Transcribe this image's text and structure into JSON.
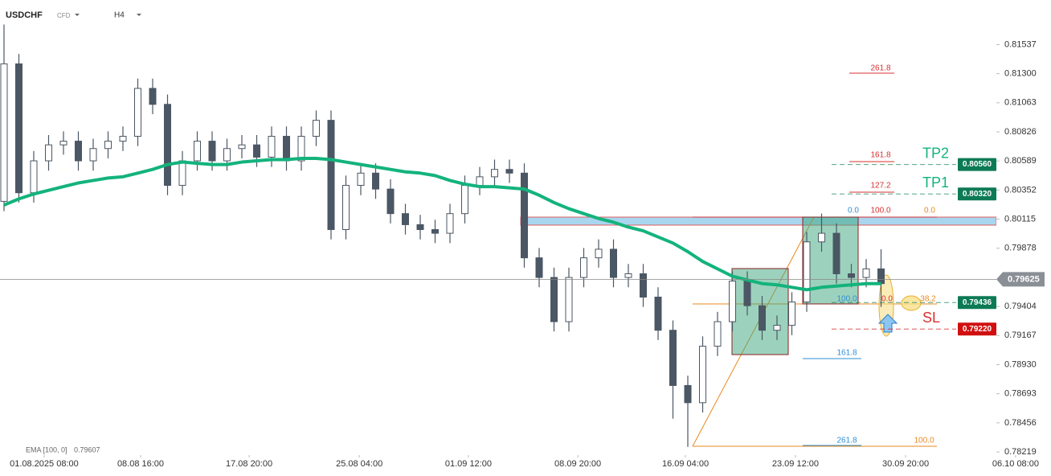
{
  "chart_data": {
    "type": "candlestick",
    "title": "USDCHF",
    "subtitle": "CFD",
    "timeframe": "H4",
    "indicator": {
      "name": "EMA [100, 0]",
      "value": 0.79607
    },
    "xlim": [
      -0.27,
      70
    ],
    "xticks": [
      {
        "value": 2.7,
        "label": "01.08.2025 08:00"
      },
      {
        "value": 9.19,
        "label": "08.08 16:00"
      },
      {
        "value": 16.49,
        "label": "17.08 20:00"
      },
      {
        "value": 23.9,
        "label": "25.08 04:00"
      },
      {
        "value": 31.24,
        "label": "01.09 12:00"
      },
      {
        "value": 38.6,
        "label": "08.09 20:00"
      },
      {
        "value": 45.84,
        "label": "16.09 04:00"
      },
      {
        "value": 53.24,
        "label": "23.09 12:00"
      },
      {
        "value": 60.65,
        "label": "30.09 20:00"
      },
      {
        "value": 68.05,
        "label": "06.10 08:00"
      }
    ],
    "ylim": [
      0.7818,
      0.819
    ],
    "yticks": [
      0.81537,
      {
        "value": 0.813,
        "label": "0.81300"
      },
      0.81063,
      0.80826,
      0.80589,
      0.80352,
      0.80115,
      0.79878,
      0.79404,
      0.79167,
      {
        "value": 0.7893,
        "label": "0.78930"
      },
      0.78693,
      0.78456,
      0.78219
    ],
    "open": [
      0.8026,
      0.8138,
      0.8033,
      0.8059,
      0.8072,
      0.8075,
      0.8059,
      0.8069,
      0.8075,
      0.8079,
      0.8118,
      0.8105,
      0.8039,
      0.8059,
      0.8075,
      0.8059,
      0.8069,
      0.8072,
      0.8062,
      0.8079,
      0.8059,
      0.8079,
      0.8092,
      0.8003,
      0.8039,
      0.8049,
      0.8036,
      0.8016,
      0.8007,
      0.8003,
      0.8,
      0.8016,
      0.8039,
      0.8046,
      0.8052,
      0.8049,
      0.798,
      0.7964,
      0.7928,
      0.7964,
      0.798,
      0.7987,
      0.7964,
      0.7967,
      0.7948,
      0.7921,
      0.7876,
      0.7862,
      0.7908,
      0.7928,
      0.7961,
      0.7941,
      0.7921,
      0.7925,
      0.7944,
      0.7993,
      0.8,
      0.7967,
      0.7964,
      0.7971
    ],
    "high": [
      0.817,
      0.8146,
      0.8067,
      0.808,
      0.8083,
      0.8083,
      0.8077,
      0.8083,
      0.8087,
      0.8126,
      0.8126,
      0.8113,
      0.8067,
      0.8083,
      0.8083,
      0.8077,
      0.808,
      0.808,
      0.8087,
      0.8087,
      0.8087,
      0.81,
      0.81,
      0.8047,
      0.8057,
      0.8057,
      0.8044,
      0.8024,
      0.8015,
      0.8011,
      0.8024,
      0.8047,
      0.8054,
      0.806,
      0.806,
      0.8057,
      0.7988,
      0.7972,
      0.7972,
      0.7988,
      0.7995,
      0.7995,
      0.7975,
      0.7975,
      0.7956,
      0.7929,
      0.7884,
      0.7916,
      0.7936,
      0.7969,
      0.7969,
      0.7949,
      0.7933,
      0.7952,
      0.8001,
      0.8016,
      0.8008,
      0.7975,
      0.7979,
      0.7987
    ],
    "low": [
      0.8018,
      0.8025,
      0.8025,
      0.8051,
      0.8064,
      0.8051,
      0.8051,
      0.8061,
      0.8067,
      0.8071,
      0.8097,
      0.8031,
      0.8031,
      0.8051,
      0.8051,
      0.8051,
      0.8061,
      0.8054,
      0.8054,
      0.8051,
      0.8051,
      0.8071,
      0.7995,
      0.7995,
      0.8031,
      0.8028,
      0.8008,
      0.7999,
      0.7995,
      0.7992,
      0.7992,
      0.8008,
      0.8031,
      0.8038,
      0.8041,
      0.7972,
      0.7956,
      0.792,
      0.792,
      0.7956,
      0.7972,
      0.7956,
      0.7956,
      0.794,
      0.7913,
      0.7849,
      0.7826,
      0.7854,
      0.79,
      0.792,
      0.7933,
      0.7913,
      0.7913,
      0.7917,
      0.7936,
      0.7985,
      0.7959,
      0.7956,
      0.7956,
      0.794
    ],
    "close": [
      0.8138,
      0.8033,
      0.8059,
      0.8072,
      0.8075,
      0.8059,
      0.8069,
      0.8075,
      0.8079,
      0.8118,
      0.8105,
      0.8039,
      0.8059,
      0.8075,
      0.8059,
      0.8069,
      0.8072,
      0.8062,
      0.8079,
      0.8059,
      0.8079,
      0.8092,
      0.8003,
      0.8039,
      0.8049,
      0.8036,
      0.8016,
      0.8007,
      0.8003,
      0.8,
      0.8016,
      0.8039,
      0.8046,
      0.8052,
      0.8049,
      0.798,
      0.7964,
      0.7928,
      0.7964,
      0.798,
      0.7987,
      0.7964,
      0.7967,
      0.7948,
      0.7921,
      0.7876,
      0.7862,
      0.7908,
      0.7928,
      0.7961,
      0.7941,
      0.7921,
      0.7925,
      0.7944,
      0.7993,
      0.8,
      0.7967,
      0.7964,
      0.7971,
      0.7959
    ],
    "ema": {
      "color": "#13b37c",
      "values": [
        0.8023,
        0.8028,
        0.8032,
        0.8035,
        0.8038,
        0.8041,
        0.8043,
        0.8045,
        0.8046,
        0.8049,
        0.8052,
        0.8056,
        0.8058,
        0.8057,
        0.8056,
        0.8056,
        0.8058,
        0.8059,
        0.806,
        0.806,
        0.8061,
        0.8061,
        0.806,
        0.8058,
        0.8056,
        0.8054,
        0.8052,
        0.805,
        0.8049,
        0.8047,
        0.8043,
        0.804,
        0.8038,
        0.8038,
        0.8037,
        0.8036,
        0.8031,
        0.8025,
        0.802,
        0.8016,
        0.8012,
        0.8009,
        0.8005,
        0.8002,
        0.7997,
        0.7992,
        0.7985,
        0.7977,
        0.7971,
        0.7965,
        0.7962,
        0.7959,
        0.7958,
        0.7956,
        0.7954,
        0.7956,
        0.7957,
        0.7958,
        0.7959,
        0.7959
      ]
    },
    "last_price": {
      "value": 0.79625,
      "label": "0.79625"
    },
    "levels": [
      {
        "name": "TP2",
        "value": 0.8056,
        "label": "0.80560",
        "color": "#0c7a55"
      },
      {
        "name": "TP1",
        "value": 0.8032,
        "label": "0.80320",
        "color": "#0c7a55"
      },
      {
        "value": 0.79436,
        "label": "0.79436",
        "color": "#0c7a55"
      },
      {
        "name": "SL",
        "value": 0.7922,
        "label": "0.79220",
        "color": "#d01010"
      }
    ],
    "annotations": [
      "261.8",
      "161.8",
      "127.2",
      "0.0",
      "100.0",
      "0.0",
      "100.0",
      "0.0",
      "38.2",
      "161.8",
      "261.8",
      "100.0"
    ]
  }
}
